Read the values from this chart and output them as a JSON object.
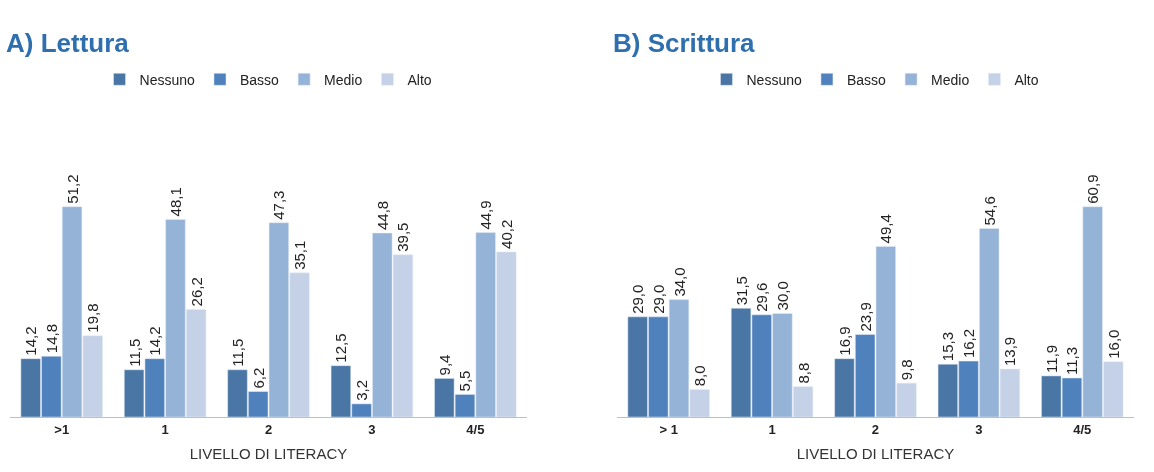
{
  "chart_data": [
    {
      "type": "bar",
      "title": "A) Lettura",
      "xlabel": "LIVELLO DI LITERACY",
      "categories": [
        ">1",
        "1",
        "2",
        "3",
        "4/5"
      ],
      "legend": "top",
      "tick_labels": "x",
      "series": [
        {
          "name": "Nessuno",
          "color": "#4a76a6",
          "values": [
            14.2,
            11.5,
            11.5,
            12.5,
            9.4
          ],
          "value_labels": [
            "14,2",
            "11,5",
            "11,5",
            "12,5",
            "9,4"
          ]
        },
        {
          "name": "Basso",
          "color": "#4f81bd",
          "values": [
            14.8,
            14.2,
            6.2,
            3.2,
            5.5
          ],
          "value_labels": [
            "14,8",
            "14,2",
            "6,2",
            "3,2",
            "5,5"
          ]
        },
        {
          "name": "Medio",
          "color": "#95b3d7",
          "values": [
            51.2,
            48.1,
            47.3,
            44.8,
            44.9
          ],
          "value_labels": [
            "51,2",
            "48,1",
            "47,3",
            "44,8",
            "44,9"
          ]
        },
        {
          "name": "Alto",
          "color": "#c5d1e6",
          "values": [
            19.8,
            26.2,
            35.1,
            39.5,
            40.2
          ],
          "value_labels": [
            "19,8",
            "26,2",
            "35,1",
            "39,5",
            "40,2"
          ]
        }
      ]
    },
    {
      "type": "bar",
      "title": "B) Scrittura",
      "xlabel": "LIVELLO DI LITERACY",
      "categories": [
        "> 1",
        "1",
        "2",
        "3",
        "4/5"
      ],
      "legend": "top",
      "tick_labels": "x",
      "series": [
        {
          "name": "Nessuno",
          "color": "#4a76a6",
          "values": [
            29.0,
            31.5,
            16.9,
            15.3,
            11.9
          ],
          "value_labels": [
            "29,0",
            "31,5",
            "16,9",
            "15,3",
            "11,9"
          ]
        },
        {
          "name": "Basso",
          "color": "#4f81bd",
          "values": [
            29.0,
            29.6,
            23.9,
            16.2,
            11.3
          ],
          "value_labels": [
            "29,0",
            "29,6",
            "23,9",
            "16,2",
            "11,3"
          ]
        },
        {
          "name": "Medio",
          "color": "#95b3d7",
          "values": [
            34.0,
            30.0,
            49.4,
            54.6,
            60.9
          ],
          "value_labels": [
            "34,0",
            "30,0",
            "49,4",
            "54,6",
            "60,9"
          ]
        },
        {
          "name": "Alto",
          "color": "#c5d1e6",
          "values": [
            8.0,
            8.8,
            9.8,
            13.9,
            16.0
          ],
          "value_labels": [
            "8,0",
            "8,8",
            "9,8",
            "13,9",
            "16,0"
          ]
        }
      ]
    }
  ]
}
